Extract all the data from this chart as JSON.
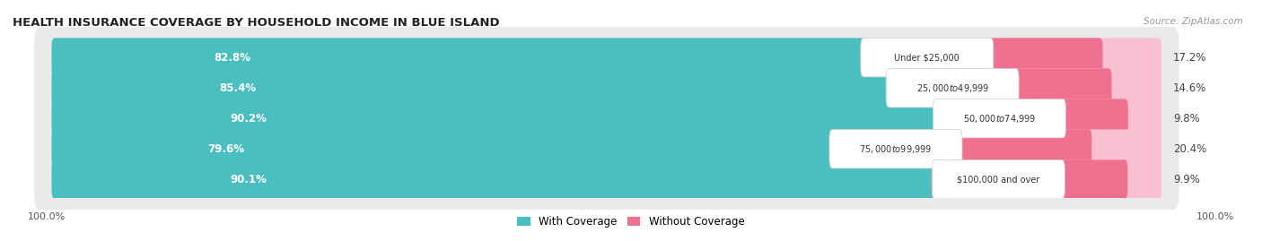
{
  "title": "HEALTH INSURANCE COVERAGE BY HOUSEHOLD INCOME IN BLUE ISLAND",
  "source": "Source: ZipAtlas.com",
  "categories": [
    "Under $25,000",
    "$25,000 to $49,999",
    "$50,000 to $74,999",
    "$75,000 to $99,999",
    "$100,000 and over"
  ],
  "with_coverage": [
    82.8,
    85.4,
    90.2,
    79.6,
    90.1
  ],
  "without_coverage": [
    17.2,
    14.6,
    9.8,
    20.4,
    9.9
  ],
  "color_with": "#4BBFBF",
  "color_without": "#F07090",
  "color_without_light": "#F8C0D0",
  "bg_bar": "#EAEAEA",
  "legend_with": "With Coverage",
  "legend_without": "Without Coverage",
  "left_label": "100.0%",
  "right_label": "100.0%"
}
